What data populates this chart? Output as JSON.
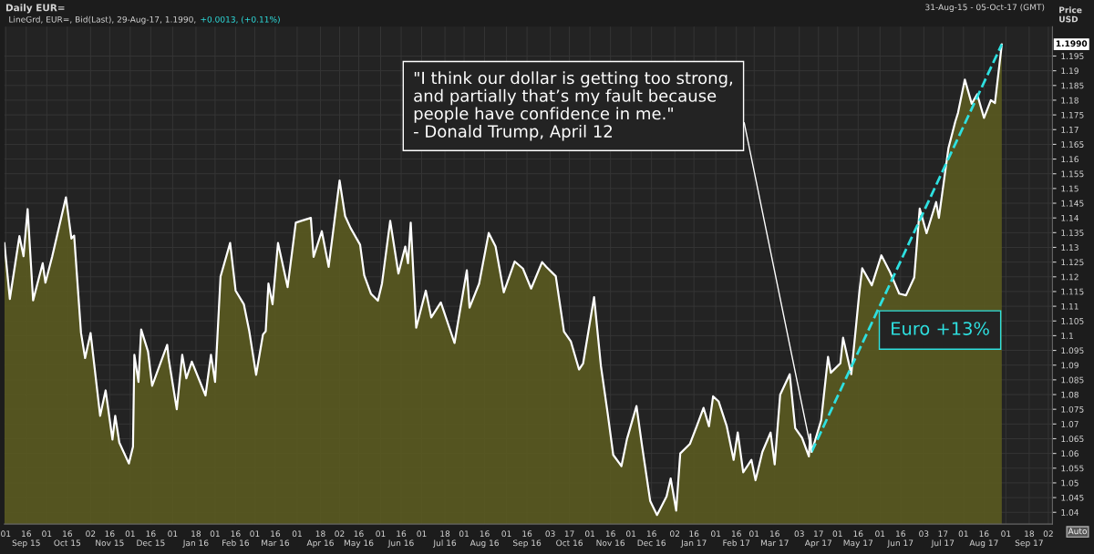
{
  "chart_data": {
    "type": "area",
    "title": "Daily EUR=",
    "subtitle": "LineGrd, EUR=, Bid(Last), 29-Aug-17, 1.1990,",
    "ylabel": "Price USD",
    "annotations": [
      "31-Aug-15 - 05-Oct-17 (GMT)",
      "+0.0013, (+0.11%)",
      {
        "text": "\"I think our dollar is getting too strong,\nand partially that’s my fault because\npeople have confidence in me.\"\n- Donald Trump, April 12",
        "x": "2017-04-12",
        "y": 1.0605
      },
      "Euro +13%",
      "1.1990",
      "Auto"
    ],
    "series": [
      {
        "color": "#ffffff",
        "x": [
          "2015-08-31",
          "2015-09-04",
          "2015-09-11",
          "2015-09-14",
          "2015-09-17",
          "2015-09-21",
          "2015-09-28",
          "2015-09-30",
          "2015-10-05",
          "2015-10-15",
          "2015-10-19",
          "2015-10-21",
          "2015-10-26",
          "2015-10-29",
          "2015-11-02",
          "2015-11-09",
          "2015-11-13",
          "2015-11-18",
          "2015-11-20",
          "2015-11-23",
          "2015-11-30",
          "2015-12-03",
          "2015-12-04",
          "2015-12-07",
          "2015-12-09",
          "2015-12-14",
          "2015-12-17",
          "2015-12-28",
          "2015-12-29",
          "2016-01-04",
          "2016-01-08",
          "2016-01-11",
          "2016-01-15",
          "2016-01-25",
          "2016-01-29",
          "2016-02-01",
          "2016-02-05",
          "2016-02-12",
          "2016-02-16",
          "2016-02-22",
          "2016-02-26",
          "2016-03-02",
          "2016-03-07",
          "2016-03-09",
          "2016-03-11",
          "2016-03-14",
          "2016-03-18",
          "2016-03-25",
          "2016-03-31",
          "2016-04-04",
          "2016-04-11",
          "2016-04-13",
          "2016-04-19",
          "2016-04-24",
          "2016-05-02",
          "2016-05-06",
          "2016-05-10",
          "2016-05-17",
          "2016-05-20",
          "2016-05-25",
          "2016-05-30",
          "2016-06-02",
          "2016-06-08",
          "2016-06-14",
          "2016-06-19",
          "2016-06-21",
          "2016-06-23",
          "2016-06-27",
          "2016-07-04",
          "2016-07-08",
          "2016-07-15",
          "2016-07-25",
          "2016-08-03",
          "2016-08-05",
          "2016-08-12",
          "2016-08-19",
          "2016-08-24",
          "2016-08-30",
          "2016-09-07",
          "2016-09-13",
          "2016-09-19",
          "2016-09-27",
          "2016-09-30",
          "2016-10-07",
          "2016-10-13",
          "2016-10-18",
          "2016-10-24",
          "2016-10-27",
          "2016-11-04",
          "2016-11-09",
          "2016-11-14",
          "2016-11-18",
          "2016-11-24",
          "2016-11-28",
          "2016-12-05",
          "2016-12-09",
          "2016-12-15",
          "2016-12-20",
          "2016-12-27",
          "2016-12-30",
          "2017-01-03",
          "2017-01-06",
          "2017-01-13",
          "2017-01-18",
          "2017-01-23",
          "2017-01-27",
          "2017-01-30",
          "2017-02-03",
          "2017-02-09",
          "2017-02-14",
          "2017-02-17",
          "2017-02-21",
          "2017-02-27",
          "2017-03-02",
          "2017-03-07",
          "2017-03-13",
          "2017-03-16",
          "2017-03-20",
          "2017-03-27",
          "2017-03-31",
          "2017-04-05",
          "2017-04-10",
          "2017-04-11",
          "2017-04-12",
          "2017-04-19",
          "2017-04-24",
          "2017-04-26",
          "2017-05-03",
          "2017-05-05",
          "2017-05-11",
          "2017-05-17",
          "2017-05-19",
          "2017-05-26",
          "2017-06-02",
          "2017-06-08",
          "2017-06-15",
          "2017-06-20",
          "2017-06-26",
          "2017-06-30",
          "2017-07-05",
          "2017-07-12",
          "2017-07-14",
          "2017-07-21",
          "2017-07-26",
          "2017-07-28",
          "2017-08-02",
          "2017-08-07",
          "2017-08-11",
          "2017-08-16",
          "2017-08-21",
          "2017-08-24",
          "2017-08-29"
        ],
        "values": [
          1.1315,
          1.1125,
          1.1338,
          1.127,
          1.143,
          1.112,
          1.1246,
          1.118,
          1.127,
          1.147,
          1.133,
          1.134,
          1.101,
          1.0924,
          1.1009,
          1.0728,
          1.0814,
          1.0647,
          1.0728,
          1.0637,
          1.0566,
          1.0623,
          1.0935,
          1.0843,
          1.1021,
          1.0946,
          1.083,
          1.0969,
          1.0924,
          1.075,
          1.0935,
          1.0855,
          1.0912,
          1.0797,
          1.0935,
          1.0843,
          1.1201,
          1.1315,
          1.1153,
          1.1107,
          1.1015,
          1.0867,
          1.1004,
          1.1015,
          1.1177,
          1.1107,
          1.1315,
          1.1165,
          1.1384,
          1.139,
          1.14,
          1.1268,
          1.1355,
          1.1234,
          1.1527,
          1.1407,
          1.1366,
          1.1309,
          1.1205,
          1.1142,
          1.1119,
          1.1177,
          1.139,
          1.1211,
          1.1303,
          1.1246,
          1.1384,
          1.1027,
          1.1153,
          1.1062,
          1.1113,
          1.0975,
          1.1222,
          1.1095,
          1.1177,
          1.1349,
          1.1303,
          1.1147,
          1.1252,
          1.1228,
          1.116,
          1.125,
          1.1234,
          1.1202,
          1.1014,
          1.0981,
          1.0885,
          1.0906,
          1.1131,
          1.0897,
          1.0734,
          1.0595,
          1.0557,
          1.0648,
          1.0761,
          1.0628,
          1.0439,
          1.0391,
          1.0454,
          1.0515,
          1.0406,
          1.06,
          1.0632,
          1.0692,
          1.0755,
          1.0692,
          1.0794,
          1.0777,
          1.0692,
          1.0578,
          1.0671,
          1.0536,
          1.0578,
          1.0509,
          1.0605,
          1.0671,
          1.0563,
          1.0799,
          1.0869,
          1.0686,
          1.0653,
          1.059,
          1.0665,
          1.0605,
          1.0713,
          1.0928,
          1.0874,
          1.0906,
          1.0993,
          1.0869,
          1.1153,
          1.1229,
          1.1171,
          1.1273,
          1.1219,
          1.1143,
          1.1137,
          1.1198,
          1.1432,
          1.1348,
          1.1454,
          1.14,
          1.1637,
          1.1727,
          1.1757,
          1.187,
          1.1788,
          1.182,
          1.174,
          1.18,
          1.179,
          1.199
        ]
      },
      {
        "type": "line",
        "color": "#2ee0e0",
        "line_style": "dashed",
        "x": [
          "2017-04-12",
          "2017-08-29"
        ],
        "values": [
          1.0605,
          1.199
        ]
      }
    ],
    "xlim": [
      "2015-08-31",
      "2017-10-05"
    ],
    "xticks": [
      {
        "value": "2015-09-01",
        "label": "01"
      },
      {
        "value": "2015-09-16",
        "label": "16\nSep 15"
      },
      {
        "value": "2015-10-01",
        "label": "01"
      },
      {
        "value": "2015-10-16",
        "label": "16\nOct 15"
      },
      {
        "value": "2015-11-02",
        "label": "02"
      },
      {
        "value": "2015-11-16",
        "label": "16\nNov 15"
      },
      {
        "value": "2015-12-01",
        "label": "01"
      },
      {
        "value": "2015-12-16",
        "label": "16\nDec 15"
      },
      {
        "value": "2016-01-01",
        "label": "01"
      },
      {
        "value": "2016-01-18",
        "label": "18\nJan 16"
      },
      {
        "value": "2016-02-01",
        "label": "01"
      },
      {
        "value": "2016-02-16",
        "label": "16\nFeb 16"
      },
      {
        "value": "2016-03-01",
        "label": "01"
      },
      {
        "value": "2016-03-16",
        "label": "16\nMar 16"
      },
      {
        "value": "2016-04-01",
        "label": "01"
      },
      {
        "value": "2016-04-18",
        "label": "18\nApr 16"
      },
      {
        "value": "2016-05-02",
        "label": "02"
      },
      {
        "value": "2016-05-16",
        "label": "16\nMay 16"
      },
      {
        "value": "2016-06-01",
        "label": "01"
      },
      {
        "value": "2016-06-16",
        "label": "16\nJun 16"
      },
      {
        "value": "2016-07-01",
        "label": "01"
      },
      {
        "value": "2016-07-18",
        "label": "18\nJul 16"
      },
      {
        "value": "2016-08-01",
        "label": "01"
      },
      {
        "value": "2016-08-16",
        "label": "16\nAug 16"
      },
      {
        "value": "2016-09-01",
        "label": "01"
      },
      {
        "value": "2016-09-16",
        "label": "16\nSep 16"
      },
      {
        "value": "2016-10-03",
        "label": "03"
      },
      {
        "value": "2016-10-17",
        "label": "17\nOct 16"
      },
      {
        "value": "2016-11-01",
        "label": "01"
      },
      {
        "value": "2016-11-16",
        "label": "16\nNov 16"
      },
      {
        "value": "2016-12-01",
        "label": "01"
      },
      {
        "value": "2016-12-16",
        "label": "16\nDec 16"
      },
      {
        "value": "2017-01-02",
        "label": "02"
      },
      {
        "value": "2017-01-16",
        "label": "16\nJan 17"
      },
      {
        "value": "2017-02-01",
        "label": "01"
      },
      {
        "value": "2017-02-16",
        "label": "16\nFeb 17"
      },
      {
        "value": "2017-03-01",
        "label": "01"
      },
      {
        "value": "2017-03-16",
        "label": "16\nMar 17"
      },
      {
        "value": "2017-04-03",
        "label": "03"
      },
      {
        "value": "2017-04-17",
        "label": "17\nApr 17"
      },
      {
        "value": "2017-05-01",
        "label": "01"
      },
      {
        "value": "2017-05-16",
        "label": "16\nMay 17"
      },
      {
        "value": "2017-06-01",
        "label": "01"
      },
      {
        "value": "2017-06-16",
        "label": "16\nJun 17"
      },
      {
        "value": "2017-07-03",
        "label": "03"
      },
      {
        "value": "2017-07-17",
        "label": "17\nJul 17"
      },
      {
        "value": "2017-08-01",
        "label": "01"
      },
      {
        "value": "2017-08-16",
        "label": "16\nAug 17"
      },
      {
        "value": "2017-09-01",
        "label": "01"
      },
      {
        "value": "2017-09-18",
        "label": "18\nSep 17"
      },
      {
        "value": "2017-10-02",
        "label": "02"
      }
    ],
    "ylim": [
      1.036,
      1.205
    ],
    "yticks": [
      1.04,
      1.045,
      1.05,
      1.055,
      1.06,
      1.065,
      1.07,
      1.075,
      1.08,
      1.085,
      1.09,
      1.095,
      1.1,
      1.105,
      1.11,
      1.115,
      1.12,
      1.125,
      1.13,
      1.135,
      1.14,
      1.145,
      1.15,
      1.155,
      1.16,
      1.165,
      1.17,
      1.175,
      1.18,
      1.185,
      1.19,
      1.195
    ],
    "grid": true
  }
}
